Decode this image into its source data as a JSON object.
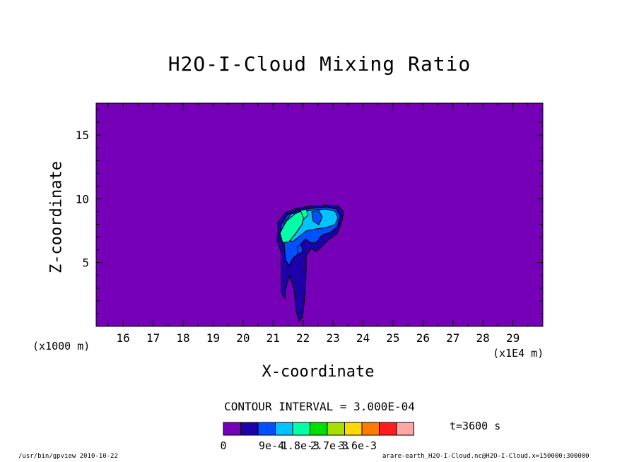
{
  "chart_data": {
    "type": "contour",
    "title": "H2O-I-Cloud Mixing Ratio",
    "xlabel": "X-coordinate",
    "ylabel": "Z-coordinate",
    "x_unit": "(x1E4 m)",
    "y_unit": "(x1000 m)",
    "xlim": [
      15.1,
      30.0
    ],
    "ylim": [
      0.0,
      17.5
    ],
    "x_ticks": [
      16,
      17,
      18,
      19,
      20,
      21,
      22,
      23,
      24,
      25,
      26,
      27,
      28,
      29
    ],
    "y_ticks": [
      5,
      10,
      15
    ],
    "contour_interval": "CONTOUR INTERVAL = 3.000E-04",
    "time_label": "t=3600 s",
    "colorbar": {
      "colors": [
        "#7600b8",
        "#1c00a8",
        "#0050ff",
        "#00c4ff",
        "#00ffa6",
        "#00e000",
        "#a6e000",
        "#ffd800",
        "#ff7a00",
        "#ff1c1c",
        "#ffa6a6"
      ],
      "labels": [
        "0",
        "9e-4",
        "1.8e-3",
        "2.7e-3",
        "3.6e-3"
      ]
    },
    "cloud_region": {
      "x_range": [
        21.1,
        23.3
      ],
      "z_range": [
        0.8,
        9.8
      ],
      "max_value": "about 1.2e-3"
    },
    "background_color": "#7600b8"
  },
  "footer": {
    "left": "/usr/bin/gpview  2010-10-22",
    "right": "arare-earth_H2O-I-Cloud.nc@H2O-I-Cloud,x=150000:300000"
  }
}
